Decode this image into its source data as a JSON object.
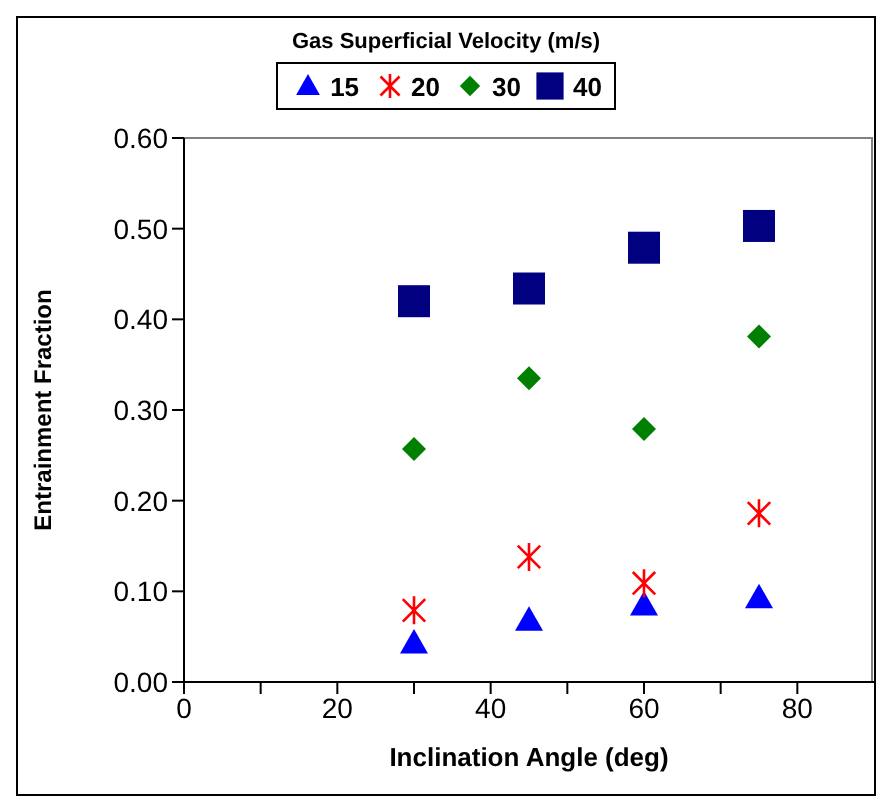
{
  "chart_data": {
    "type": "scatter",
    "xlabel": "Inclination Angle (deg)",
    "ylabel": "Entrainment Fraction",
    "legend_title": "Gas Superficial Velocity (m/s)",
    "legend": "top",
    "grid": false,
    "x": [
      30,
      45,
      60,
      75
    ],
    "xlim": [
      0,
      90
    ],
    "xticks": [
      0,
      {
        "value": 10,
        "label": null
      },
      20,
      {
        "value": 30,
        "label": null
      },
      40,
      {
        "value": 50,
        "label": null
      },
      60,
      {
        "value": 70,
        "label": null
      },
      80
    ],
    "ylim": [
      0,
      0.6
    ],
    "yticks": [
      {
        "value": 0,
        "label": "0.00"
      },
      {
        "value": 0.1,
        "label": "0.10"
      },
      {
        "value": 0.2,
        "label": "0.20"
      },
      {
        "value": 0.3,
        "label": "0.30"
      },
      {
        "value": 0.4,
        "label": "0.40"
      },
      {
        "value": 0.5,
        "label": "0.50"
      },
      {
        "value": 0.6,
        "label": "0.60"
      }
    ],
    "series": [
      {
        "name": "15",
        "color": "#0000ff",
        "marker": "triangle",
        "values": [
          0.043,
          0.068,
          0.085,
          0.093
        ]
      },
      {
        "name": "20",
        "color": "#ff0000",
        "marker": "cross",
        "values": [
          0.079,
          0.138,
          0.109,
          0.186
        ]
      },
      {
        "name": "30",
        "color": "#008000",
        "marker": "diamond",
        "values": [
          0.257,
          0.335,
          0.279,
          0.381
        ]
      },
      {
        "name": "40",
        "color": "#000080",
        "marker": "square",
        "values": [
          0.42,
          0.434,
          0.479,
          0.503
        ]
      }
    ]
  }
}
